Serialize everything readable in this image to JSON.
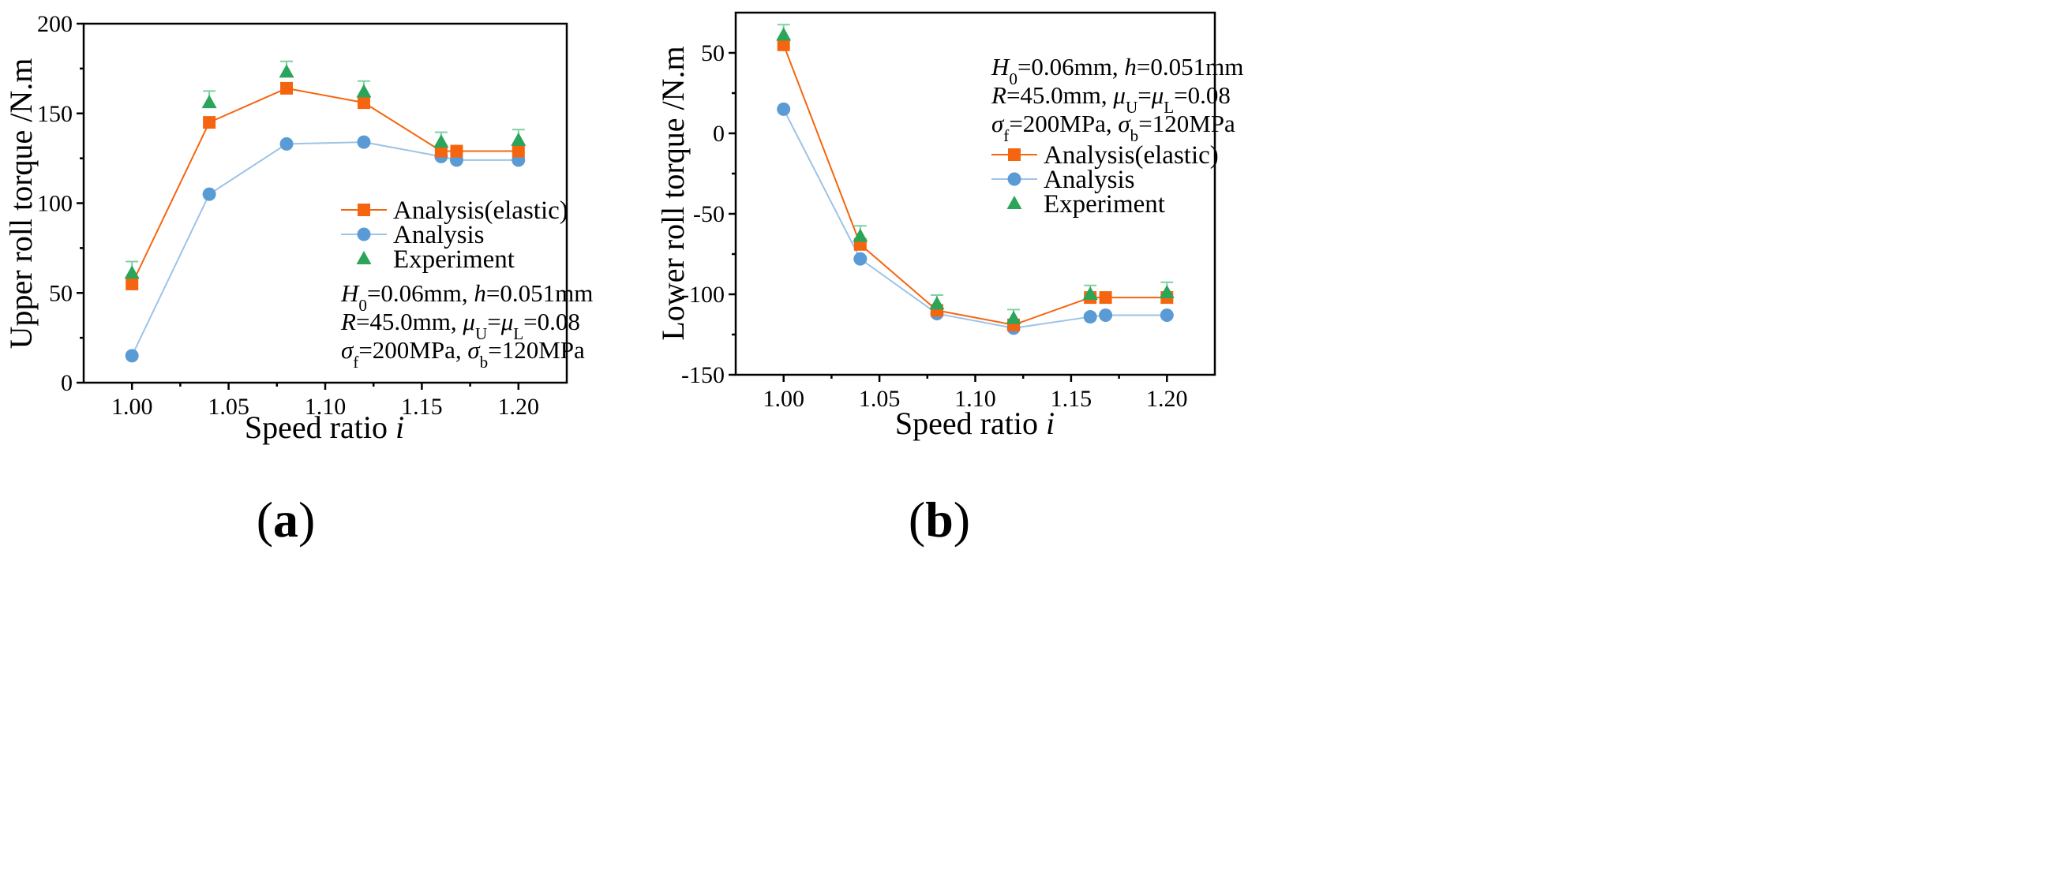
{
  "chart_data": [
    {
      "panel": "a",
      "panel_label": "(a)",
      "type": "line",
      "title": "",
      "xlabel": "Speed ratio",
      "xlabel_var": "i",
      "ylabel": "Upper roll torque /N.m",
      "xlim": [
        0.975,
        1.225
      ],
      "ylim": [
        0,
        200
      ],
      "xticks": [
        1.0,
        1.05,
        1.1,
        1.15,
        1.2
      ],
      "xtick_labels": [
        "1.00",
        "1.05",
        "1.10",
        "1.15",
        "1.20"
      ],
      "yticks": [
        0,
        50,
        100,
        150,
        200
      ],
      "ytick_labels": [
        "0",
        "50",
        "100",
        "150",
        "200"
      ],
      "legend_position": "middle-right",
      "series": [
        {
          "name": "Analysis(elastic)",
          "color": "#F5650F",
          "marker": "square",
          "line": true,
          "x": [
            1.0,
            1.04,
            1.08,
            1.12,
            1.16,
            1.168,
            1.2
          ],
          "y": [
            55,
            145,
            164,
            156,
            129,
            129,
            129
          ]
        },
        {
          "name": "Analysis",
          "color": "#5B9BD5",
          "line_color": "#9DC3E6",
          "marker": "circle",
          "line": true,
          "x": [
            1.0,
            1.04,
            1.08,
            1.12,
            1.16,
            1.168,
            1.2
          ],
          "y": [
            15,
            105,
            133,
            134,
            126,
            124,
            124
          ]
        },
        {
          "name": "Experiment",
          "color": "#2AA55A",
          "err_color": "#7FD1A3",
          "marker": "triangle",
          "line": false,
          "x": [
            1.0,
            1.04,
            1.08,
            1.12,
            1.16,
            1.2
          ],
          "y": [
            61,
            156,
            173,
            162,
            134,
            135
          ],
          "err": [
            6.5,
            6.5,
            6,
            6,
            5.5,
            6
          ]
        }
      ],
      "annotations": [
        {
          "runs": [
            [
              "H",
              "i"
            ],
            [
              "0",
              "sub"
            ],
            [
              "=0.06mm, ",
              "n"
            ],
            [
              "h",
              "i"
            ],
            [
              "=0.051mm",
              "n"
            ]
          ]
        },
        {
          "runs": [
            [
              "R",
              "i"
            ],
            [
              "=45.0mm, ",
              "n"
            ],
            [
              "μ",
              "i"
            ],
            [
              "U",
              "sub"
            ],
            [
              "=",
              "n"
            ],
            [
              "μ",
              "i"
            ],
            [
              "L",
              "sub"
            ],
            [
              "=0.08",
              "n"
            ]
          ]
        },
        {
          "runs": [
            [
              "σ",
              "i"
            ],
            [
              "f",
              "sub"
            ],
            [
              "=200MPa, ",
              "n"
            ],
            [
              "σ",
              "i"
            ],
            [
              "b",
              "sub"
            ],
            [
              "=120MPa",
              "n"
            ]
          ]
        }
      ]
    },
    {
      "panel": "b",
      "panel_label": "(b)",
      "type": "line",
      "title": "",
      "xlabel": "Speed ratio",
      "xlabel_var": "i",
      "ylabel": "Lower roll torque /N.m",
      "xlim": [
        0.975,
        1.225
      ],
      "ylim": [
        -150,
        75
      ],
      "xticks": [
        1.0,
        1.05,
        1.1,
        1.15,
        1.2
      ],
      "xtick_labels": [
        "1.00",
        "1.05",
        "1.10",
        "1.15",
        "1.20"
      ],
      "yticks": [
        -150,
        -100,
        -50,
        0,
        50
      ],
      "ytick_labels": [
        "-150",
        "-100",
        "-50",
        "0",
        "50"
      ],
      "legend_position": "upper-right",
      "series": [
        {
          "name": "Analysis(elastic)",
          "color": "#F5650F",
          "marker": "square",
          "line": true,
          "x": [
            1.0,
            1.04,
            1.08,
            1.12,
            1.16,
            1.168,
            1.2
          ],
          "y": [
            55,
            -69,
            -110,
            -119,
            -102,
            -102,
            -102
          ]
        },
        {
          "name": "Analysis",
          "color": "#5B9BD5",
          "line_color": "#9DC3E6",
          "marker": "circle",
          "line": true,
          "x": [
            1.0,
            1.04,
            1.08,
            1.12,
            1.16,
            1.168,
            1.2
          ],
          "y": [
            15,
            -78,
            -112,
            -121,
            -114,
            -113,
            -113
          ]
        },
        {
          "name": "Experiment",
          "color": "#2AA55A",
          "err_color": "#7FD1A3",
          "marker": "triangle",
          "line": false,
          "x": [
            1.0,
            1.04,
            1.08,
            1.12,
            1.16,
            1.2
          ],
          "y": [
            61,
            -64,
            -106,
            -115,
            -100,
            -99
          ],
          "err": [
            6.5,
            6.5,
            5.5,
            5.5,
            5.5,
            6.5
          ]
        }
      ],
      "annotations": [
        {
          "runs": [
            [
              "H",
              "i"
            ],
            [
              "0",
              "sub"
            ],
            [
              "=0.06mm, ",
              "n"
            ],
            [
              "h",
              "i"
            ],
            [
              "=0.051mm",
              "n"
            ]
          ]
        },
        {
          "runs": [
            [
              "R",
              "i"
            ],
            [
              "=45.0mm, ",
              "n"
            ],
            [
              "μ",
              "i"
            ],
            [
              "U",
              "sub"
            ],
            [
              "=",
              "n"
            ],
            [
              "μ",
              "i"
            ],
            [
              "L",
              "sub"
            ],
            [
              "=0.08",
              "n"
            ]
          ]
        },
        {
          "runs": [
            [
              "σ",
              "i"
            ],
            [
              "f",
              "sub"
            ],
            [
              "=200MPa, ",
              "n"
            ],
            [
              "σ",
              "i"
            ],
            [
              "b",
              "sub"
            ],
            [
              "=120MPa",
              "n"
            ]
          ]
        }
      ]
    }
  ]
}
